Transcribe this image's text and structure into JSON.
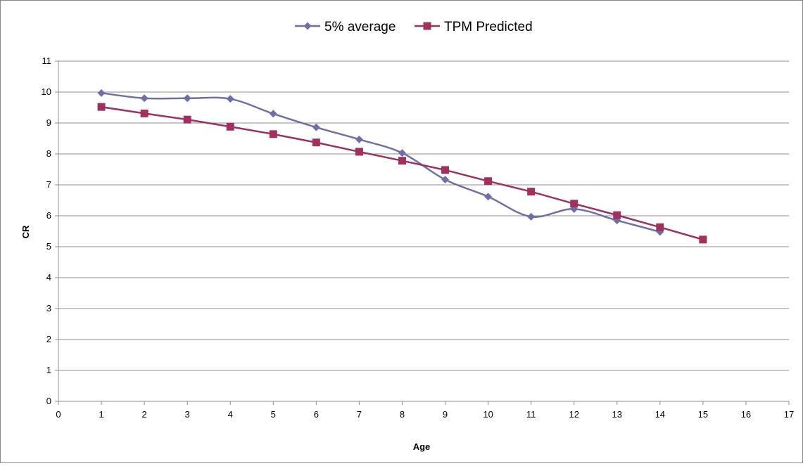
{
  "chart_data": {
    "type": "line",
    "title": "",
    "xlabel": "Age",
    "ylabel": "CR",
    "xlim": [
      0,
      17
    ],
    "ylim": [
      0,
      11
    ],
    "x_ticks": [
      "0",
      "1",
      "2",
      "3",
      "4",
      "5",
      "6",
      "7",
      "8",
      "9",
      "10",
      "11",
      "12",
      "13",
      "14",
      "15",
      "16",
      "17"
    ],
    "y_ticks": [
      "0",
      "1",
      "2",
      "3",
      "4",
      "5",
      "6",
      "7",
      "8",
      "9",
      "10",
      "11"
    ],
    "grid": "horizontal",
    "legend_position": "top",
    "series": [
      {
        "name": "5% average",
        "color": "#6f6fa6",
        "marker": "diamond",
        "smooth": true,
        "x": [
          1,
          2,
          3,
          4,
          5,
          6,
          7,
          8,
          9,
          10,
          11,
          12,
          13,
          14
        ],
        "y": [
          9.97,
          9.8,
          9.8,
          9.78,
          9.3,
          8.86,
          8.47,
          8.03,
          7.17,
          6.62,
          5.97,
          6.22,
          5.85,
          5.48
        ]
      },
      {
        "name": "TPM Predicted",
        "color": "#a0305e",
        "marker": "square",
        "smooth": false,
        "x": [
          1,
          2,
          3,
          4,
          5,
          6,
          7,
          8,
          9,
          10,
          11,
          12,
          13,
          14,
          15
        ],
        "y": [
          9.52,
          9.31,
          9.11,
          8.88,
          8.64,
          8.37,
          8.07,
          7.78,
          7.48,
          7.12,
          6.78,
          6.39,
          6.02,
          5.63,
          5.23
        ]
      }
    ]
  }
}
